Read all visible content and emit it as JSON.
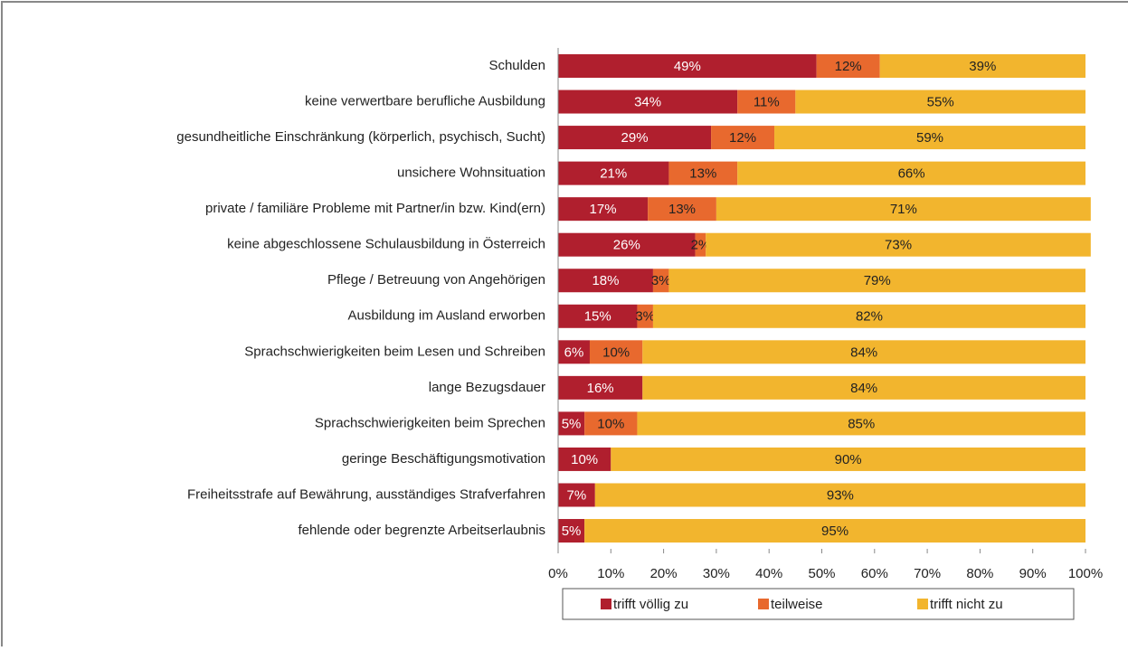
{
  "chart_data": {
    "type": "stacked_barh",
    "categories": [
      "Schulden",
      "keine verwertbare berufliche Ausbildung",
      "gesundheitliche Einschränkung (körperlich, psychisch, Sucht)",
      "unsichere Wohnsituation",
      "private / familiäre Probleme mit Partner/in bzw. Kind(ern)",
      "keine abgeschlossene Schulausbildung in Österreich",
      "Pflege / Betreuung von Angehörigen",
      "Ausbildung im Ausland erworben",
      "Sprachschwierigkeiten beim Lesen und Schreiben",
      "lange Bezugsdauer",
      "Sprachschwierigkeiten beim Sprechen",
      "geringe Beschäftigungsmotivation",
      "Freiheitsstrafe auf Bewährung, ausständiges Strafverfahren",
      "fehlende oder begrenzte Arbeitserlaubnis"
    ],
    "series": [
      {
        "name": "trifft völlig zu",
        "color": "#b01f2e",
        "values": [
          49,
          34,
          29,
          21,
          17,
          26,
          18,
          15,
          6,
          16,
          5,
          10,
          7,
          5
        ],
        "value_labels": [
          "49%",
          "34%",
          "29%",
          "21%",
          "17%",
          "26%",
          "18%",
          "15%",
          "6%",
          "16%",
          "5%",
          "10%",
          "7%",
          "5%"
        ]
      },
      {
        "name": "teilweise",
        "color": "#e8692e",
        "values": [
          12,
          11,
          12,
          13,
          13,
          2,
          3,
          3,
          10,
          null,
          10,
          null,
          null,
          null
        ],
        "value_labels": [
          "12%",
          "11%",
          "12%",
          "13%",
          "13%",
          "2%",
          "3%",
          "3%",
          "10%",
          null,
          "10%",
          null,
          null,
          null
        ]
      },
      {
        "name": "trifft nicht zu",
        "color": "#f2b52e",
        "values": [
          39,
          55,
          59,
          66,
          71,
          73,
          79,
          82,
          84,
          84,
          85,
          90,
          93,
          95
        ],
        "value_labels": [
          "39%",
          "55%",
          "59%",
          "66%",
          "71%",
          "73%",
          "79%",
          "82%",
          "84%",
          "84%",
          "85%",
          "90%",
          "93%",
          "95%"
        ]
      }
    ],
    "xlim": [
      0,
      100
    ],
    "xticks": [
      {
        "value": 0,
        "label": "0%"
      },
      {
        "value": 10,
        "label": "10%"
      },
      {
        "value": 20,
        "label": "20%"
      },
      {
        "value": 30,
        "label": "30%"
      },
      {
        "value": 40,
        "label": "40%"
      },
      {
        "value": 50,
        "label": "50%"
      },
      {
        "value": 60,
        "label": "60%"
      },
      {
        "value": 70,
        "label": "70%"
      },
      {
        "value": 80,
        "label": "80%"
      },
      {
        "value": 90,
        "label": "90%"
      },
      {
        "value": 100,
        "label": "100%"
      }
    ],
    "legend": "bottom"
  }
}
